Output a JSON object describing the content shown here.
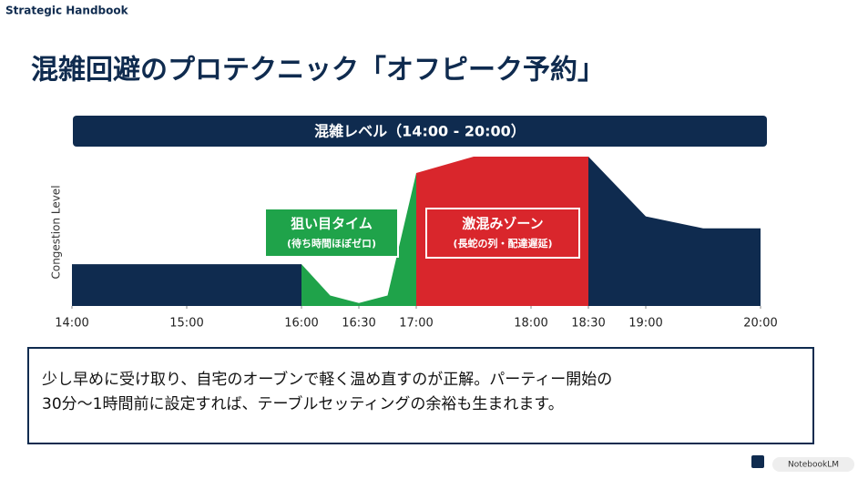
{
  "header": {
    "brand": "Strategic Handbook",
    "title": "混雑回避のプロテクニック「オフピーク予約」"
  },
  "chart_data": {
    "type": "area",
    "title": "混雑レベル（14:00 - 20:00）",
    "y_label": "Congestion Level",
    "xlim": [
      14,
      20
    ],
    "ylim": [
      0,
      10
    ],
    "xticks": [
      {
        "value": 14,
        "label": "14:00"
      },
      {
        "value": 15,
        "label": "15:00"
      },
      {
        "value": 16,
        "label": "16:00"
      },
      {
        "value": 16.5,
        "label": "16:30"
      },
      {
        "value": 17,
        "label": "17:00"
      },
      {
        "value": 18,
        "label": "18:00"
      },
      {
        "value": 18.5,
        "label": "18:30"
      },
      {
        "value": 19,
        "label": "19:00"
      },
      {
        "value": 20,
        "label": "20:00"
      }
    ],
    "series": [
      {
        "color": "#0f2b4f",
        "x": [
          14,
          16
        ],
        "values": [
          2.8,
          2.8
        ]
      },
      {
        "color": "#1fa34a",
        "x": [
          16,
          16.25,
          16.5,
          16.75,
          17
        ],
        "values": [
          2.8,
          0.7,
          0.2,
          0.7,
          8.9
        ]
      },
      {
        "color": "#d9262c",
        "x": [
          17,
          17.5,
          18.5
        ],
        "values": [
          8.9,
          10,
          10
        ]
      },
      {
        "color": "#0f2b4f",
        "x": [
          18.5,
          19,
          19.5,
          20
        ],
        "values": [
          10,
          6,
          5.2,
          5.2
        ]
      }
    ],
    "annotations": [
      {
        "title": "狙い目タイム",
        "subtitle": "(待ち時間ほぼゼロ)"
      },
      {
        "title": "激混みゾーン",
        "subtitle": "(長蛇の列・配達遅延)"
      }
    ]
  },
  "note": {
    "lines": [
      "少し早めに受け取り、自宅のオーブンで軽く温め直すのが正解。パーティー開始の",
      "30分〜1時間前に設定すれば、テーブルセッティングの余裕も生まれます。"
    ]
  },
  "badge": "NotebookLM"
}
